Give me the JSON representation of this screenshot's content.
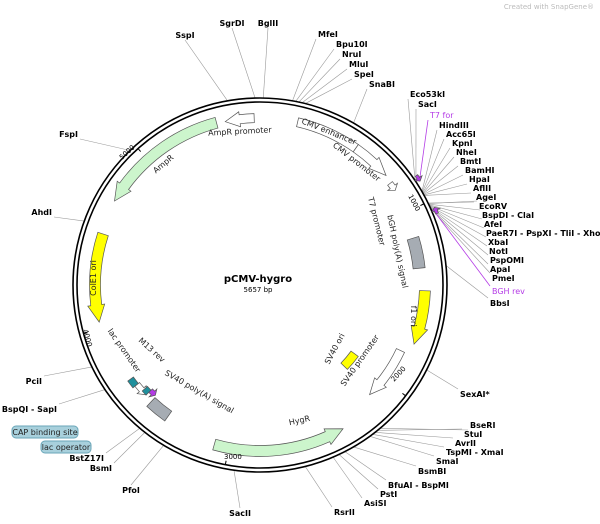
{
  "watermark": "Created with SnapGene®",
  "plasmid": {
    "name": "pCMV-hygro",
    "length": "5657 bp"
  },
  "ticks": [
    "1000",
    "2000",
    "3000",
    "4000",
    "5000"
  ],
  "features": {
    "ampr_promoter": "AmpR promoter",
    "ampr": "AmpR",
    "cmv_enhancer": "CMV enhancer",
    "cmv_promoter": "CMV promoter",
    "t7_promoter": "T7 promoter",
    "bgh": "bGH poly(A) signal",
    "f1_ori": "f1 ori",
    "sv40_promoter": "SV40 promoter",
    "sv40_ori": "SV40 ori",
    "hygr": "HygR",
    "sv40_polya": "SV40 poly(A) signal",
    "m13_rev": "M13 rev",
    "lac_promoter": "lac promoter",
    "cole1_ori": "ColE1 ori",
    "cap_site": "CAP binding site",
    "lac_operator": "lac operator"
  },
  "primers": [
    "T7 for",
    "BGH rev"
  ],
  "enzymes": [
    "SspI",
    "SgrDI",
    "BglII",
    "MfeI",
    "Bpu10I",
    "NruI",
    "MluI",
    "SpeI",
    "SnaBI",
    "Eco53kI",
    "SacI",
    "HindIII",
    "Acc65I",
    "KpnI",
    "NheI",
    "BmtI",
    "BamHI",
    "HpaI",
    "AflII",
    "AgeI",
    "EcoRV",
    "BspDI - ClaI",
    "AfeI",
    "PaeR7I - PspXI - TliI - XhoI",
    "XbaI",
    "NotI",
    "PspOMI",
    "ApaI",
    "PmeI",
    "BbsI",
    "SexAI*",
    "BseRI",
    "StuI",
    "AvrII",
    "TspMI - XmaI",
    "SmaI",
    "BsmBI",
    "BfuAI - BspMI",
    "PstI",
    "AsiSI",
    "RsrII",
    "SacII",
    "PfoI",
    "BsmI",
    "BstZ17I",
    "BspQI - SapI",
    "PciI",
    "AhdI",
    "FspI"
  ],
  "colors": {
    "backbone": "#000000",
    "resistance": "#ccf5cc",
    "ori": "#ffff00",
    "polya": "#a6acb3",
    "promoter": "#ffffff",
    "primer": "#b43ce6",
    "misc": "#1f8f9c",
    "box": "#a8d0dc"
  }
}
